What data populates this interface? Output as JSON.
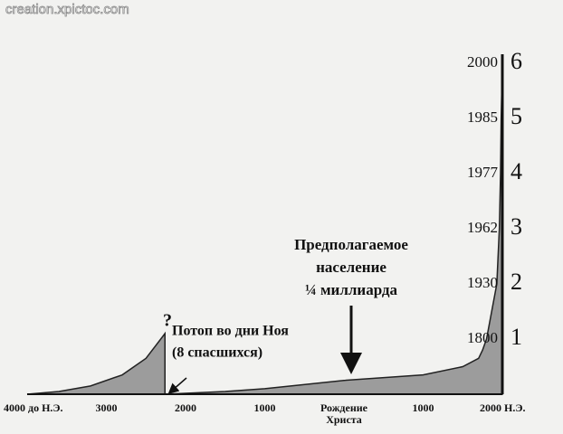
{
  "chart_data": {
    "type": "area",
    "watermark": "creation.xpictoc.com",
    "xlim": [
      -4000,
      2000
    ],
    "xticks": [
      {
        "value": -4000,
        "label": "4000 до Н.Э."
      },
      {
        "value": -3000,
        "label": "3000"
      },
      {
        "value": -2000,
        "label": "2000"
      },
      {
        "value": -1000,
        "label": "1000"
      },
      {
        "value": 0,
        "label": "Рождение Христа"
      },
      {
        "value": 1000,
        "label": "1000"
      },
      {
        "value": 2000,
        "label": "2000 Н.Э."
      }
    ],
    "y2lim": [
      0,
      6
    ],
    "y2ticks": [
      1,
      2,
      3,
      4,
      5,
      6
    ],
    "series": [
      {
        "color": "#9c9c9c",
        "axis": "y2",
        "x": [
          -4000,
          -3600,
          -3200,
          -2800,
          -2500,
          -2260
        ],
        "values": [
          0,
          0.05,
          0.15,
          0.35,
          0.65,
          1.1
        ]
      },
      {
        "color": "#9c9c9c",
        "axis": "y2",
        "x": [
          -2260,
          -1500,
          -1000,
          0,
          1000,
          1500,
          1700,
          1750,
          1800,
          1930,
          1962,
          1977,
          1985,
          2000
        ],
        "values": [
          0,
          0.05,
          0.1,
          0.25,
          0.35,
          0.5,
          0.65,
          0.8,
          1,
          2,
          3,
          4,
          5,
          6
        ]
      }
    ],
    "annotations": [
      "?",
      "Потоп во дни Ноя",
      "(8 спасшихся)",
      "Предполагаемое",
      "население",
      "¼ миллиарда"
    ]
  }
}
